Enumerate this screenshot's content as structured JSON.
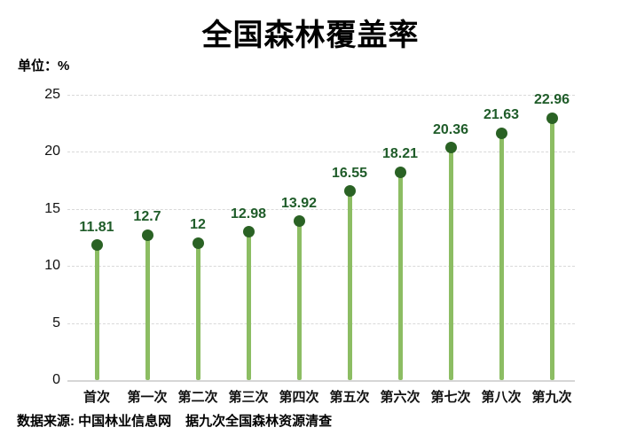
{
  "chart": {
    "title": "全国森林覆盖率",
    "unit_label": "单位：%",
    "footer": {
      "source": "数据来源: 中国林业信息网",
      "note": "据九次全国森林资源清查"
    }
  },
  "chart_data": {
    "type": "bar",
    "style": "lollipop",
    "title": "全国森林覆盖率",
    "categories": [
      "首次",
      "第一次",
      "第二次",
      "第三次",
      "第四次",
      "第五次",
      "第六次",
      "第七次",
      "第八次",
      "第九次"
    ],
    "values": [
      11.81,
      12.7,
      12,
      12.98,
      13.92,
      16.55,
      18.21,
      20.36,
      21.63,
      22.96
    ],
    "value_labels": [
      "11.81",
      "12.7",
      "12",
      "12.98",
      "13.92",
      "16.55",
      "18.21",
      "20.36",
      "21.63",
      "22.96"
    ],
    "xlabel": "",
    "ylabel": "单位：%",
    "ylim": [
      0,
      25
    ],
    "yticks": [
      0,
      5,
      10,
      15,
      20,
      25
    ],
    "grid": "horizontal-dashed",
    "legend": "none",
    "colors": {
      "stem": "#8cbd63",
      "dot": "#2a6224",
      "value_label": "#1f5c29",
      "grid": "#d9d9d9",
      "baseline": "#d6d6d6",
      "axis_text": "#111111",
      "title_text": "#000000"
    }
  }
}
